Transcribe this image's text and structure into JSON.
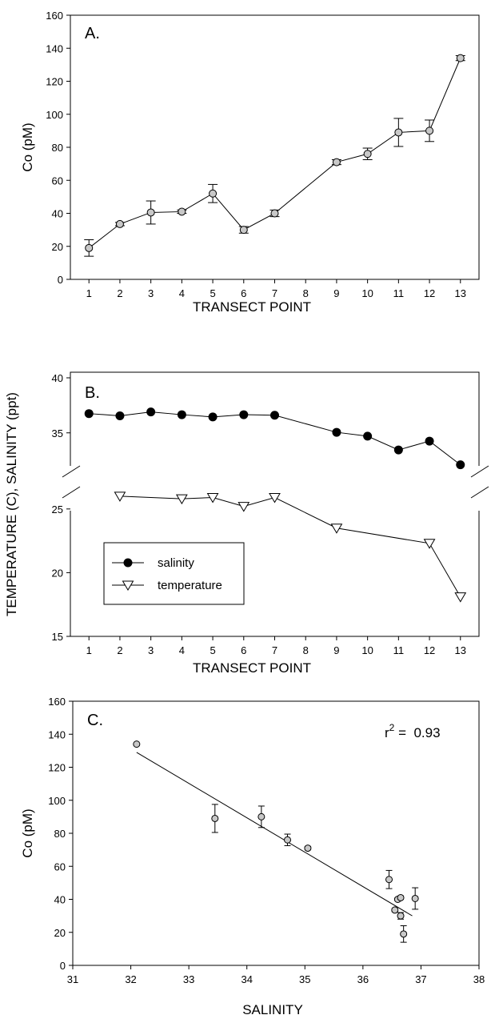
{
  "chart_data": [
    {
      "panel_label": "A.",
      "type": "line",
      "xlabel": "TRANSECT POINT",
      "ylabel": "Co (pM)",
      "x_ticks": [
        1,
        2,
        3,
        4,
        5,
        6,
        7,
        8,
        9,
        10,
        11,
        12,
        13
      ],
      "y_ticks": [
        0,
        20,
        40,
        60,
        80,
        100,
        120,
        140,
        160
      ],
      "ylim": [
        0,
        160
      ],
      "xlim": [
        0.4,
        13.6
      ],
      "grid": false,
      "series": [
        {
          "x": [
            1,
            2,
            3,
            4,
            5,
            6,
            7,
            9,
            10,
            11,
            12,
            13
          ],
          "y": [
            19,
            33.5,
            40.5,
            41,
            52,
            30,
            40,
            71,
            76,
            89,
            90,
            134
          ],
          "err": [
            5,
            1,
            7,
            1,
            5.5,
            2,
            2,
            1.5,
            3.5,
            8.5,
            6.5,
            1.5
          ],
          "marker": "circle-gray"
        }
      ]
    },
    {
      "panel_label": "B.",
      "type": "line",
      "xlabel": "TRANSECT POINT",
      "ylabel": "TEMPERATURE (C), SALINITY (ppt)",
      "x_ticks": [
        1,
        2,
        3,
        4,
        5,
        6,
        7,
        8,
        9,
        10,
        11,
        12,
        13
      ],
      "y_ticks_upper": [
        "35",
        "40"
      ],
      "y_ticks_lower": [
        "15",
        "20",
        "25"
      ],
      "broken_y_axis": true,
      "grid": false,
      "legend_position": "lower-left",
      "series": [
        {
          "name": "salinity",
          "x": [
            1,
            2,
            3,
            4,
            5,
            6,
            7,
            9,
            10,
            11,
            12,
            13
          ],
          "y": [
            36.75,
            36.55,
            36.9,
            36.65,
            36.45,
            36.65,
            36.6,
            35.05,
            34.7,
            33.45,
            34.25,
            32.1
          ],
          "marker": "circle-black"
        },
        {
          "name": "temperature",
          "x": [
            2,
            4,
            5,
            6,
            7,
            9,
            12,
            13
          ],
          "y": [
            26,
            25.8,
            25.9,
            25.2,
            25.9,
            23.5,
            22.3,
            18.1
          ],
          "marker": "triangle-down-open"
        }
      ]
    },
    {
      "panel_label": "C.",
      "type": "scatter",
      "xlabel": "SALINITY",
      "ylabel": "Co (pM)",
      "x_ticks": [
        31,
        32,
        33,
        34,
        35,
        36,
        37,
        38
      ],
      "y_ticks": [
        0,
        20,
        40,
        60,
        80,
        100,
        120,
        140,
        160
      ],
      "xlim": [
        31,
        38
      ],
      "ylim": [
        0,
        160
      ],
      "grid": false,
      "annotation": {
        "prefix": "r",
        "superscript": "2",
        "text": " =  0.93"
      },
      "points": {
        "x": [
          32.1,
          33.45,
          34.25,
          34.7,
          35.05,
          36.45,
          36.55,
          36.6,
          36.65,
          36.65,
          36.7,
          36.9
        ],
        "y": [
          134,
          89,
          90,
          76,
          71,
          52,
          33.5,
          40,
          41,
          30,
          19,
          40.5
        ],
        "err": [
          0,
          8.5,
          6.5,
          3.5,
          1,
          5.5,
          1,
          1,
          1,
          2,
          5,
          6.5
        ]
      },
      "regression": {
        "x": [
          32.1,
          36.85
        ],
        "y": [
          129,
          30
        ]
      }
    }
  ]
}
